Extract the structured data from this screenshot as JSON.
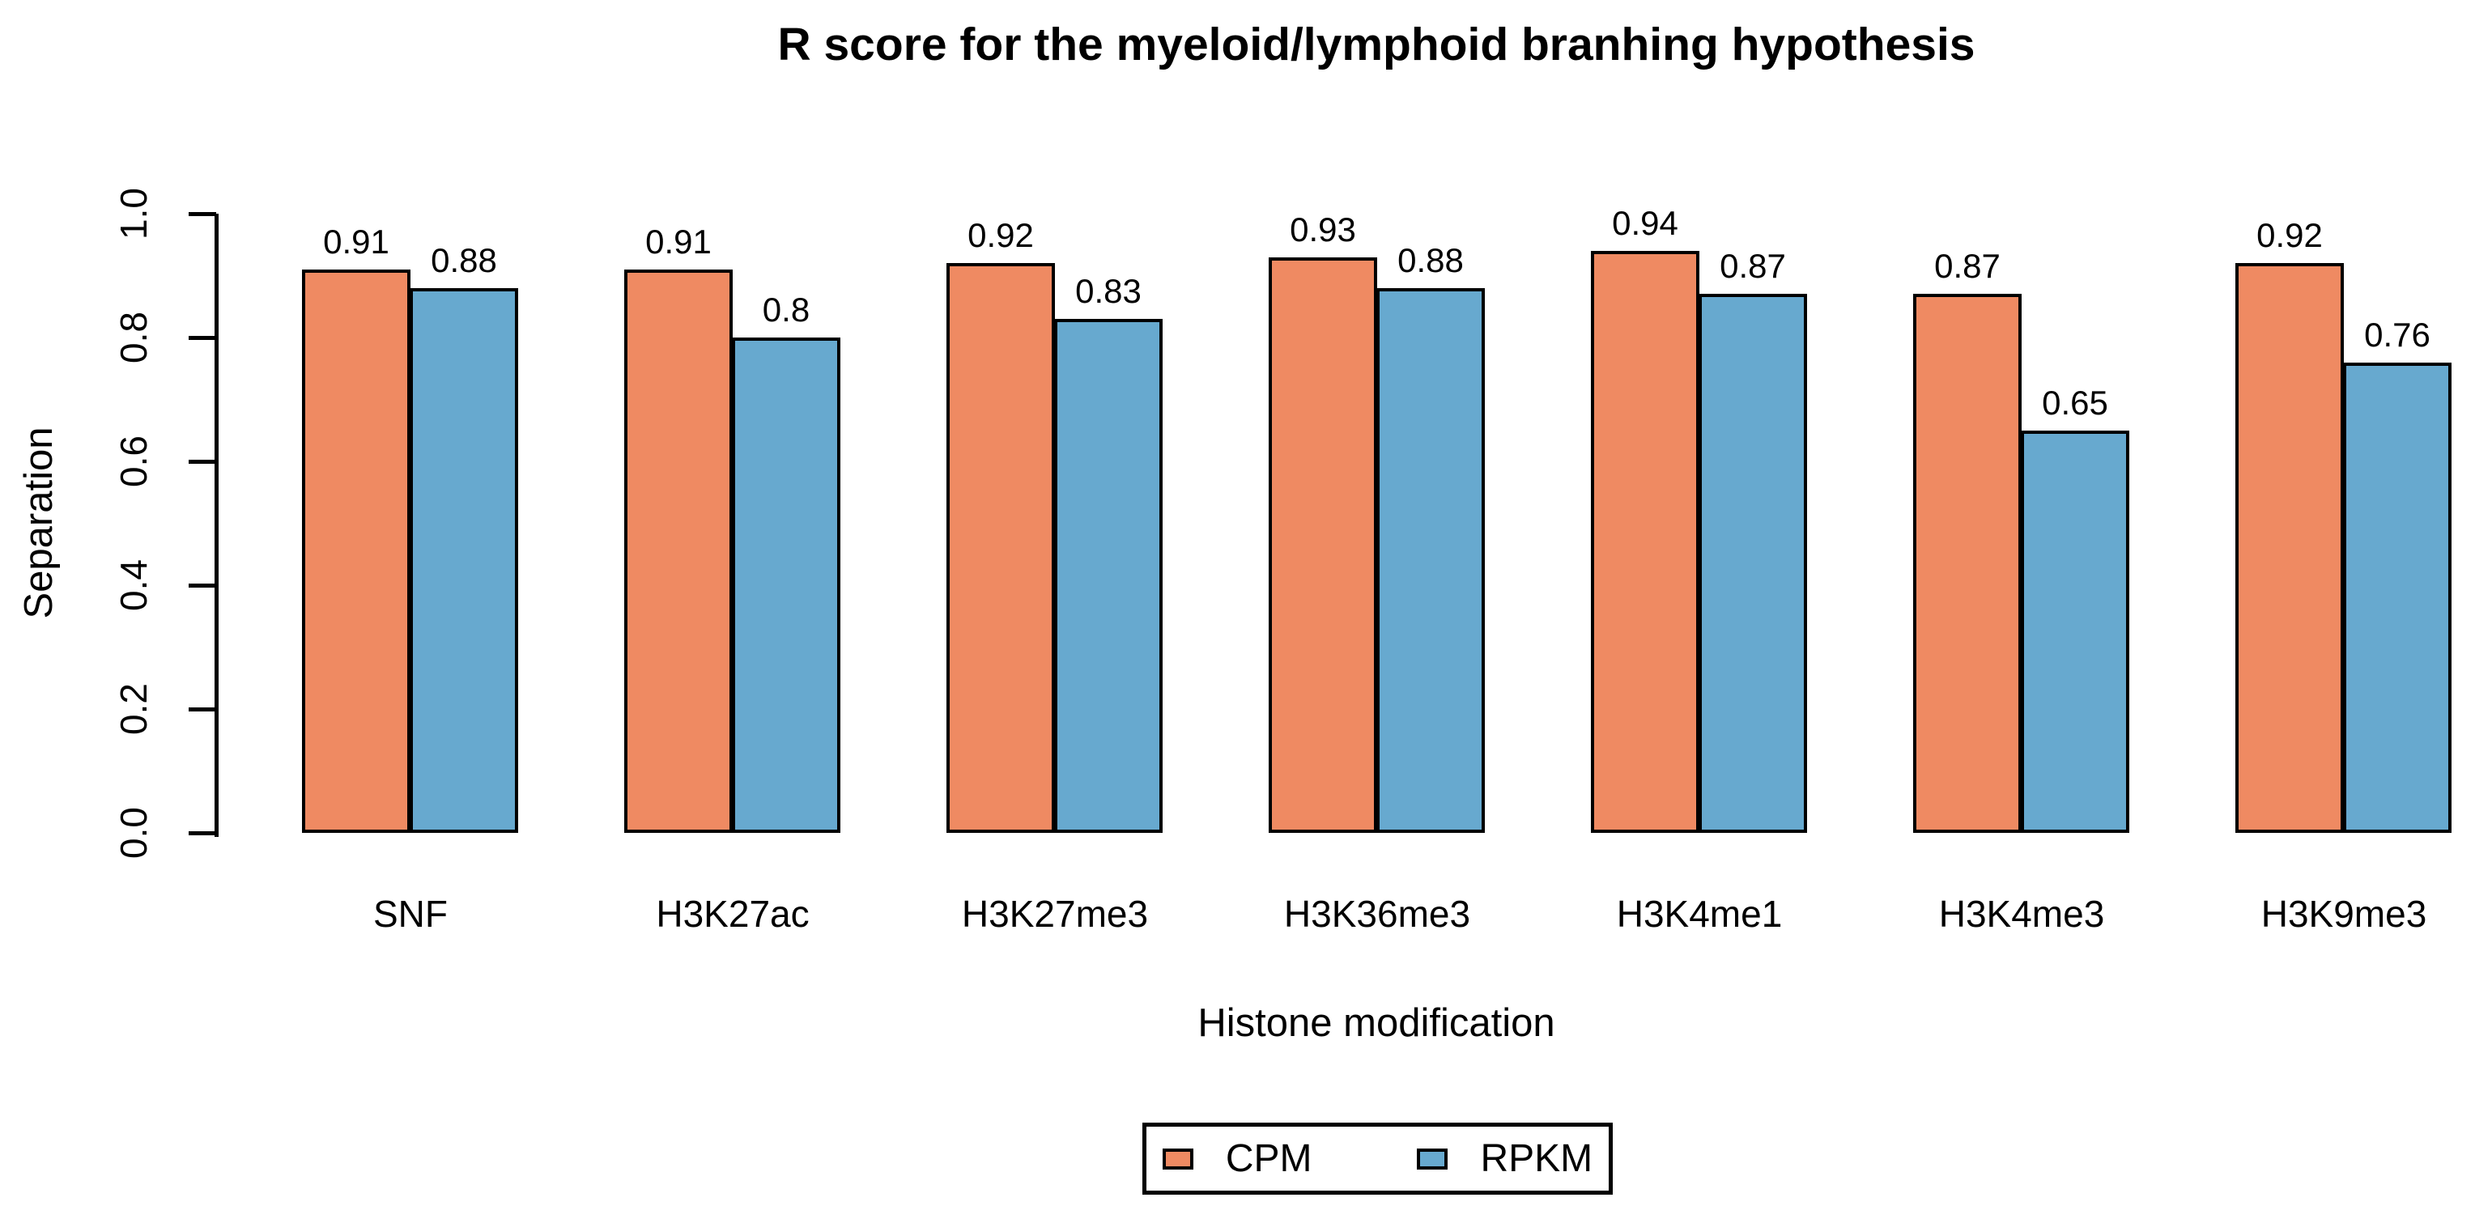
{
  "chart_data": {
    "type": "bar",
    "title": "R score for the myeloid/lymphoid branhing hypothesis",
    "xlabel": "Histone modification",
    "ylabel": "Separation",
    "ylim": [
      0.0,
      1.0
    ],
    "yticks": [
      "0.0",
      "0.2",
      "0.4",
      "0.6",
      "0.8",
      "1.0"
    ],
    "grid": false,
    "legend_position": "bottom-center",
    "categories": [
      "SNF",
      "H3K27ac",
      "H3K27me3",
      "H3K36me3",
      "H3K4me1",
      "H3K4me3",
      "H3K9me3"
    ],
    "series": [
      {
        "name": "CPM",
        "color": "#EF8A62",
        "values": [
          0.91,
          0.91,
          0.92,
          0.93,
          0.94,
          0.87,
          0.92
        ],
        "labels": [
          "0.91",
          "0.91",
          "0.92",
          "0.93",
          "0.94",
          "0.87",
          "0.92"
        ]
      },
      {
        "name": "RPKM",
        "color": "#67A9CF",
        "values": [
          0.88,
          0.8,
          0.83,
          0.88,
          0.87,
          0.65,
          0.76
        ],
        "labels": [
          "0.88",
          "0.8",
          "0.83",
          "0.88",
          "0.87",
          "0.65",
          "0.76"
        ]
      }
    ]
  },
  "colors": {
    "background": "#FFFFFF",
    "text": "#000000",
    "bar_border": "#000000",
    "cpm": "#EF8A62",
    "rpkm": "#67A9CF"
  }
}
